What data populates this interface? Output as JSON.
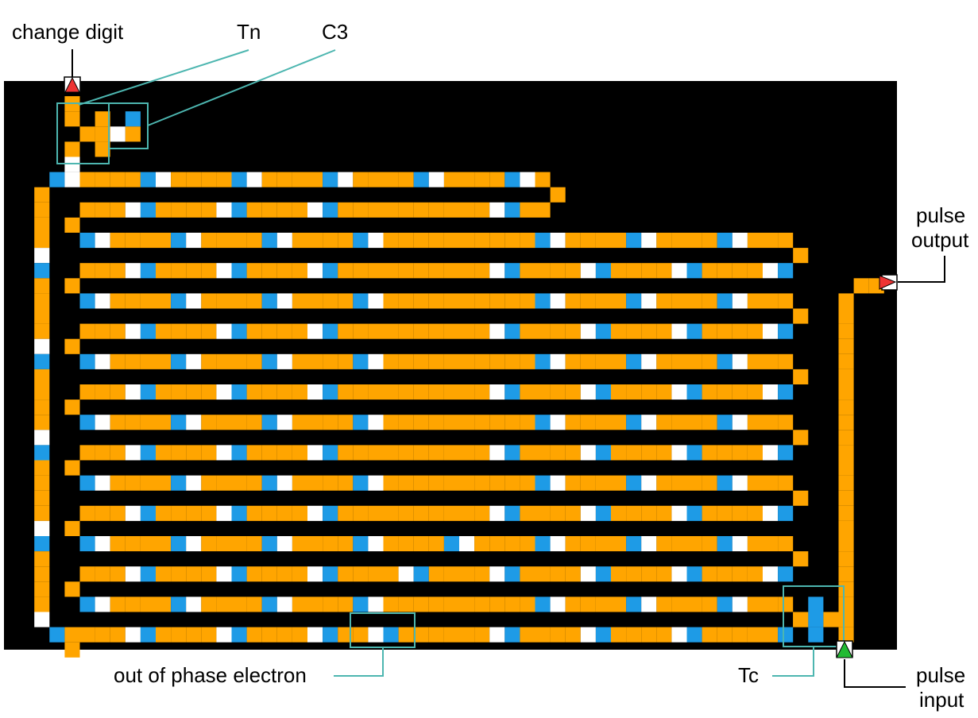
{
  "labels": {
    "change_digit": "change digit",
    "tn": "Tn",
    "c3": "C3",
    "pulse_output_1": "pulse",
    "pulse_output_2": "output",
    "out_of_phase": "out of phase electron",
    "tc": "Tc",
    "pulse_input_1": "pulse",
    "pulse_input_2": "input"
  },
  "colors": {
    "background": "#000000",
    "conductor": "#FFA500",
    "electron_head": "#1E9BE6",
    "electron_tail": "#FFFFFF",
    "callout_box": "#4DB6B0",
    "input_arrow": "#22BB33",
    "output_arrow": "#EE3333"
  }
}
